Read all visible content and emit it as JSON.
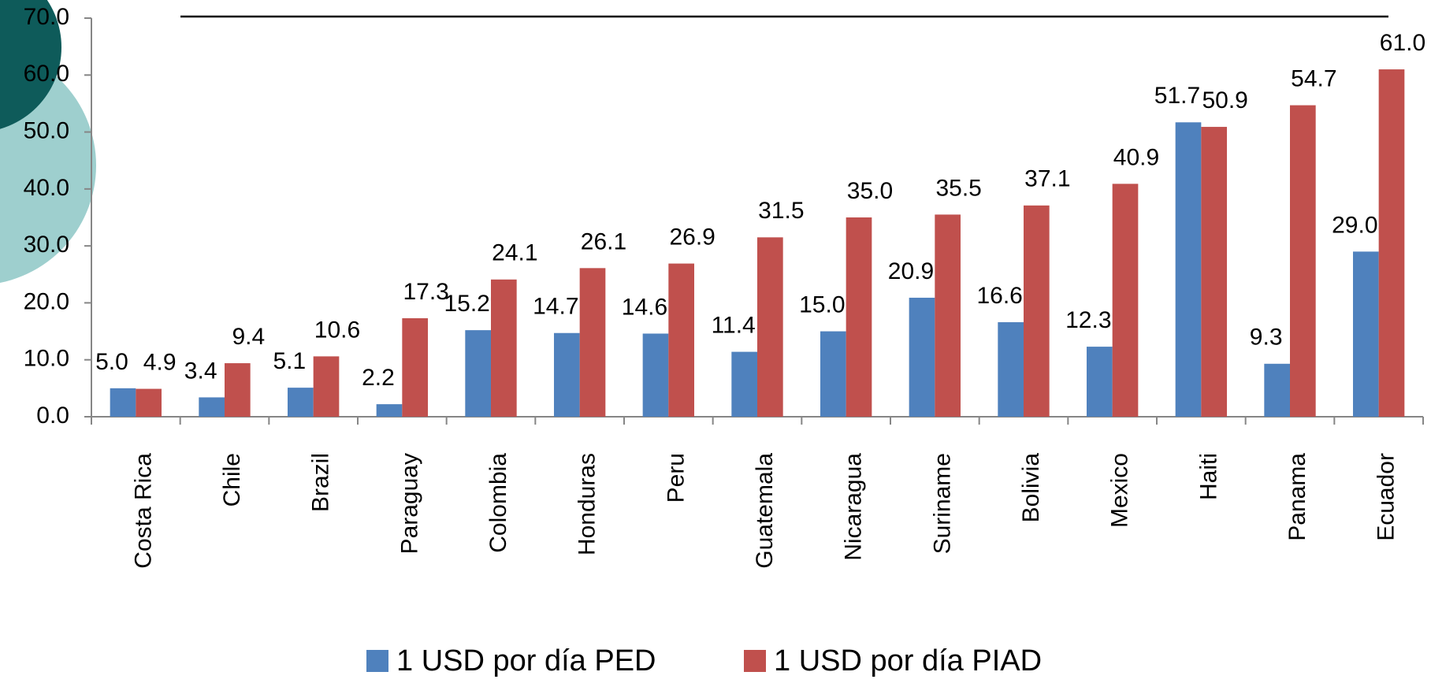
{
  "chart_data": {
    "type": "bar",
    "categories": [
      "Costa Rica",
      "Chile",
      "Brazil",
      "Paraguay",
      "Colombia",
      "Honduras",
      "Peru",
      "Guatemala",
      "Nicaragua",
      "Suriname",
      "Bolivia",
      "Mexico",
      "Haiti",
      "Panama",
      "Ecuador"
    ],
    "series": [
      {
        "name": "1 USD por día PED",
        "color": "#4f81bd",
        "values": [
          5.0,
          3.4,
          5.1,
          2.2,
          15.2,
          14.7,
          14.6,
          11.4,
          15.0,
          20.9,
          16.6,
          12.3,
          51.7,
          9.3,
          29.0
        ],
        "value_labels": [
          "5.0",
          "3.4",
          "5.1",
          "2.2",
          "15.2",
          "14.7",
          "14.6",
          "11.4",
          "15.0",
          "20.9",
          "16.6",
          "12.3",
          "51.7",
          "9.3",
          "29.0"
        ]
      },
      {
        "name": "1 USD por día PIAD",
        "color": "#c0504d",
        "values": [
          4.9,
          9.4,
          10.6,
          17.3,
          24.1,
          26.1,
          26.9,
          31.5,
          35.0,
          35.5,
          37.1,
          40.9,
          50.9,
          54.7,
          61.0
        ],
        "value_labels": [
          "4.9",
          "9.4",
          "10.6",
          "17.3",
          "24.1",
          "26.1",
          "26.9",
          "31.5",
          "35.0",
          "35.5",
          "37.1",
          "40.9",
          "50.9",
          "54.7",
          "61.0"
        ]
      }
    ],
    "ylim": [
      0,
      70
    ],
    "yticks": [
      {
        "value": 0,
        "label": "0.0"
      },
      {
        "value": 10,
        "label": "10.0"
      },
      {
        "value": 20,
        "label": "20.0"
      },
      {
        "value": 30,
        "label": "30.0"
      },
      {
        "value": 40,
        "label": "40.0"
      },
      {
        "value": 50,
        "label": "50.0"
      },
      {
        "value": 60,
        "label": "60.0"
      },
      {
        "value": 70,
        "label": "70.0"
      }
    ],
    "legend": "bottom"
  }
}
